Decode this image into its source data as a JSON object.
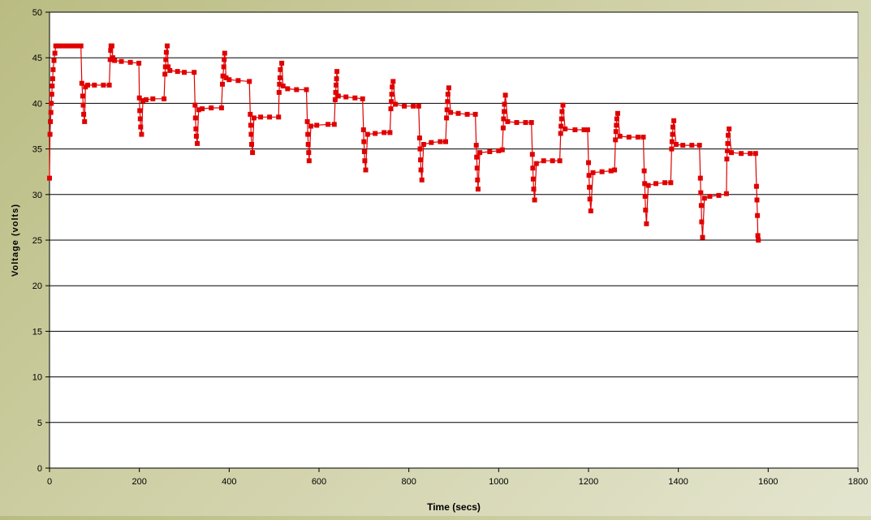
{
  "colors": {
    "series": "#e00000",
    "plot_bg": "#ffffff",
    "grid": "#000000"
  },
  "chart_data": {
    "type": "line",
    "title": "",
    "xlabel": "Time (secs)",
    "ylabel": "Voltage (volts)",
    "xlim": [
      0,
      1800
    ],
    "ylim": [
      0,
      50
    ],
    "xticks": [
      0,
      200,
      400,
      600,
      800,
      1000,
      1200,
      1400,
      1600,
      1800
    ],
    "yticks": [
      0,
      5,
      10,
      15,
      20,
      25,
      30,
      35,
      40,
      45,
      50
    ],
    "grid": "horizontal",
    "legend": "none",
    "series": [
      {
        "color": "#e00000",
        "marker": "square",
        "points": [
          [
            0,
            31.8
          ],
          [
            1,
            36.6
          ],
          [
            2,
            38.0
          ],
          [
            3,
            39.0
          ],
          [
            4,
            40.0
          ],
          [
            5,
            41.0
          ],
          [
            6,
            41.9
          ],
          [
            7,
            42.7
          ],
          [
            8,
            43.7
          ],
          [
            10,
            44.7
          ],
          [
            12,
            45.5
          ],
          [
            14,
            46.3
          ],
          [
            20,
            46.3
          ],
          [
            30,
            46.3
          ],
          [
            40,
            46.3
          ],
          [
            50,
            46.3
          ],
          [
            60,
            46.3
          ],
          [
            70,
            46.3
          ],
          [
            72,
            42.2
          ],
          [
            74,
            40.8
          ],
          [
            75,
            39.8
          ],
          [
            76,
            38.8
          ],
          [
            78,
            38.0
          ],
          [
            80,
            41.8
          ],
          [
            85,
            42.0
          ],
          [
            100,
            42.0
          ],
          [
            120,
            42.0
          ],
          [
            133,
            42.0
          ],
          [
            135,
            44.8
          ],
          [
            136,
            45.8
          ],
          [
            137,
            46.3
          ],
          [
            139,
            46.3
          ],
          [
            141,
            45.0
          ],
          [
            145,
            44.7
          ],
          [
            160,
            44.6
          ],
          [
            180,
            44.5
          ],
          [
            199,
            44.4
          ],
          [
            200,
            40.6
          ],
          [
            201,
            39.2
          ],
          [
            202,
            38.3
          ],
          [
            203,
            37.4
          ],
          [
            205,
            36.6
          ],
          [
            208,
            40.3
          ],
          [
            215,
            40.4
          ],
          [
            230,
            40.5
          ],
          [
            255,
            40.5
          ],
          [
            257,
            43.2
          ],
          [
            258,
            44.0
          ],
          [
            259,
            44.8
          ],
          [
            260,
            45.6
          ],
          [
            262,
            46.3
          ],
          [
            264,
            44.0
          ],
          [
            268,
            43.6
          ],
          [
            285,
            43.5
          ],
          [
            300,
            43.4
          ],
          [
            322,
            43.4
          ],
          [
            324,
            39.8
          ],
          [
            325,
            38.4
          ],
          [
            326,
            37.2
          ],
          [
            327,
            36.4
          ],
          [
            329,
            35.6
          ],
          [
            332,
            39.3
          ],
          [
            340,
            39.4
          ],
          [
            360,
            39.5
          ],
          [
            383,
            39.5
          ],
          [
            385,
            42.1
          ],
          [
            386,
            43.0
          ],
          [
            388,
            44.0
          ],
          [
            389,
            44.8
          ],
          [
            390,
            45.5
          ],
          [
            393,
            42.8
          ],
          [
            400,
            42.6
          ],
          [
            420,
            42.5
          ],
          [
            445,
            42.4
          ],
          [
            447,
            38.8
          ],
          [
            448,
            37.6
          ],
          [
            449,
            36.6
          ],
          [
            450,
            35.5
          ],
          [
            452,
            34.6
          ],
          [
            455,
            38.4
          ],
          [
            470,
            38.5
          ],
          [
            490,
            38.5
          ],
          [
            510,
            38.5
          ],
          [
            511,
            41.2
          ],
          [
            512,
            42.1
          ],
          [
            513,
            42.8
          ],
          [
            514,
            43.7
          ],
          [
            517,
            44.4
          ],
          [
            520,
            41.9
          ],
          [
            530,
            41.6
          ],
          [
            550,
            41.5
          ],
          [
            572,
            41.5
          ],
          [
            574,
            38.0
          ],
          [
            575,
            36.6
          ],
          [
            576,
            35.5
          ],
          [
            577,
            34.6
          ],
          [
            578,
            33.7
          ],
          [
            582,
            37.5
          ],
          [
            595,
            37.6
          ],
          [
            620,
            37.7
          ],
          [
            634,
            37.7
          ],
          [
            636,
            40.4
          ],
          [
            637,
            41.2
          ],
          [
            638,
            42.0
          ],
          [
            639,
            42.7
          ],
          [
            640,
            43.5
          ],
          [
            643,
            40.8
          ],
          [
            660,
            40.7
          ],
          [
            680,
            40.6
          ],
          [
            697,
            40.5
          ],
          [
            699,
            37.1
          ],
          [
            700,
            35.8
          ],
          [
            701,
            34.7
          ],
          [
            702,
            33.7
          ],
          [
            704,
            32.7
          ],
          [
            708,
            36.6
          ],
          [
            725,
            36.7
          ],
          [
            745,
            36.8
          ],
          [
            758,
            36.8
          ],
          [
            760,
            39.4
          ],
          [
            761,
            40.2
          ],
          [
            762,
            41.0
          ],
          [
            763,
            41.8
          ],
          [
            765,
            42.4
          ],
          [
            770,
            39.9
          ],
          [
            790,
            39.7
          ],
          [
            810,
            39.7
          ],
          [
            822,
            39.7
          ],
          [
            824,
            36.2
          ],
          [
            825,
            35.0
          ],
          [
            826,
            33.8
          ],
          [
            827,
            32.7
          ],
          [
            829,
            31.6
          ],
          [
            833,
            35.5
          ],
          [
            850,
            35.7
          ],
          [
            870,
            35.8
          ],
          [
            882,
            35.8
          ],
          [
            884,
            38.4
          ],
          [
            885,
            39.3
          ],
          [
            886,
            40.2
          ],
          [
            887,
            41.0
          ],
          [
            889,
            41.7
          ],
          [
            893,
            39.0
          ],
          [
            910,
            38.9
          ],
          [
            930,
            38.8
          ],
          [
            948,
            38.8
          ],
          [
            950,
            35.4
          ],
          [
            951,
            34.1
          ],
          [
            952,
            32.9
          ],
          [
            953,
            31.6
          ],
          [
            954,
            30.6
          ],
          [
            958,
            34.6
          ],
          [
            980,
            34.7
          ],
          [
            1000,
            34.8
          ],
          [
            1008,
            34.9
          ],
          [
            1010,
            37.3
          ],
          [
            1011,
            38.3
          ],
          [
            1012,
            39.1
          ],
          [
            1013,
            39.9
          ],
          [
            1015,
            40.9
          ],
          [
            1020,
            38.0
          ],
          [
            1040,
            37.9
          ],
          [
            1060,
            37.9
          ],
          [
            1073,
            37.9
          ],
          [
            1075,
            34.4
          ],
          [
            1076,
            32.9
          ],
          [
            1077,
            31.7
          ],
          [
            1078,
            30.6
          ],
          [
            1080,
            29.4
          ],
          [
            1084,
            33.4
          ],
          [
            1100,
            33.7
          ],
          [
            1120,
            33.7
          ],
          [
            1136,
            33.7
          ],
          [
            1138,
            36.7
          ],
          [
            1139,
            37.5
          ],
          [
            1140,
            38.3
          ],
          [
            1141,
            39.1
          ],
          [
            1143,
            39.8
          ],
          [
            1148,
            37.2
          ],
          [
            1170,
            37.1
          ],
          [
            1190,
            37.1
          ],
          [
            1198,
            37.1
          ],
          [
            1200,
            33.5
          ],
          [
            1201,
            32.1
          ],
          [
            1202,
            30.8
          ],
          [
            1203,
            29.5
          ],
          [
            1205,
            28.2
          ],
          [
            1210,
            32.4
          ],
          [
            1230,
            32.5
          ],
          [
            1250,
            32.6
          ],
          [
            1258,
            32.7
          ],
          [
            1260,
            36.0
          ],
          [
            1261,
            36.9
          ],
          [
            1262,
            37.6
          ],
          [
            1263,
            38.3
          ],
          [
            1265,
            38.9
          ],
          [
            1270,
            36.4
          ],
          [
            1290,
            36.3
          ],
          [
            1310,
            36.3
          ],
          [
            1322,
            36.3
          ],
          [
            1324,
            32.6
          ],
          [
            1325,
            31.2
          ],
          [
            1326,
            29.8
          ],
          [
            1327,
            28.3
          ],
          [
            1329,
            26.8
          ],
          [
            1333,
            31.0
          ],
          [
            1350,
            31.2
          ],
          [
            1370,
            31.3
          ],
          [
            1383,
            31.3
          ],
          [
            1385,
            35.0
          ],
          [
            1386,
            35.8
          ],
          [
            1387,
            36.6
          ],
          [
            1388,
            37.4
          ],
          [
            1390,
            38.1
          ],
          [
            1395,
            35.5
          ],
          [
            1410,
            35.4
          ],
          [
            1430,
            35.4
          ],
          [
            1447,
            35.4
          ],
          [
            1449,
            31.8
          ],
          [
            1450,
            30.2
          ],
          [
            1451,
            28.8
          ],
          [
            1452,
            27.0
          ],
          [
            1454,
            25.3
          ],
          [
            1458,
            29.6
          ],
          [
            1470,
            29.8
          ],
          [
            1490,
            29.9
          ],
          [
            1507,
            30.1
          ],
          [
            1508,
            33.9
          ],
          [
            1509,
            34.8
          ],
          [
            1510,
            35.6
          ],
          [
            1511,
            36.5
          ],
          [
            1513,
            37.2
          ],
          [
            1518,
            34.6
          ],
          [
            1540,
            34.5
          ],
          [
            1560,
            34.5
          ],
          [
            1572,
            34.5
          ],
          [
            1574,
            30.9
          ],
          [
            1575,
            29.4
          ],
          [
            1576,
            27.7
          ],
          [
            1577,
            25.5
          ],
          [
            1578,
            25.0
          ]
        ]
      }
    ]
  }
}
